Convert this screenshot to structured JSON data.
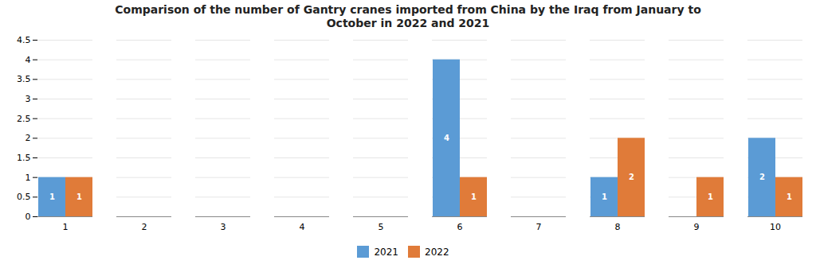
{
  "chart_data": {
    "type": "bar",
    "title": "Comparison of the number of Gantry cranes imported from China by the Iraq from January to\nOctober in 2022 and 2021",
    "categories": [
      1,
      2,
      3,
      4,
      5,
      6,
      7,
      8,
      9,
      10
    ],
    "series": [
      {
        "name": "2021",
        "color": "#5B9BD5",
        "values": [
          1,
          0,
          0,
          0,
          0,
          4,
          0,
          1,
          0,
          2
        ]
      },
      {
        "name": "2022",
        "color": "#E07B39",
        "values": [
          1,
          0,
          0,
          0,
          0,
          1,
          0,
          2,
          1,
          1
        ]
      }
    ],
    "ylim": [
      0,
      4.5
    ],
    "yticks": [
      0,
      0.5,
      1,
      1.5,
      2,
      2.5,
      3,
      3.5,
      4,
      4.5
    ],
    "grid": true,
    "legend": "bottom",
    "data_labels": true
  }
}
